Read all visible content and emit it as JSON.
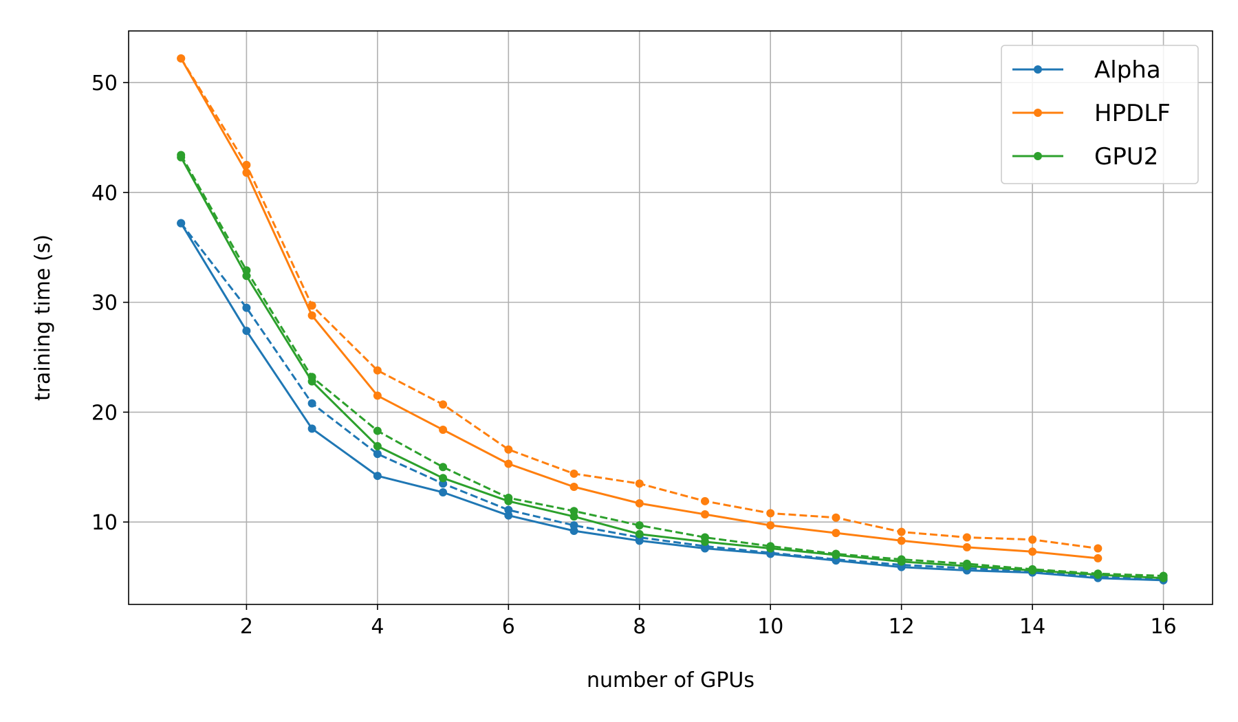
{
  "chart_data": {
    "type": "line",
    "title": "",
    "xlabel": "number of GPUs",
    "ylabel": "training time (s)",
    "xlim": [
      0.2,
      16.75
    ],
    "ylim": [
      2.5,
      54.7
    ],
    "xticks": [
      2,
      4,
      6,
      8,
      10,
      12,
      14,
      16
    ],
    "yticks": [
      10,
      20,
      30,
      40,
      50
    ],
    "grid": true,
    "legend_position": "top-right",
    "series": [
      {
        "name": "Alpha",
        "color": "#1f77b4",
        "linestyle": "solid",
        "in_legend": true,
        "x": [
          1,
          2,
          3,
          4,
          5,
          6,
          7,
          8,
          9,
          10,
          11,
          12,
          13,
          14,
          15,
          16
        ],
        "y": [
          37.2,
          27.4,
          18.5,
          14.2,
          12.7,
          10.6,
          9.2,
          8.3,
          7.6,
          7.1,
          6.5,
          5.9,
          5.6,
          5.4,
          4.9,
          4.7
        ]
      },
      {
        "name": "",
        "color": "#1f77b4",
        "linestyle": "dashed",
        "in_legend": false,
        "x": [
          1,
          2,
          3,
          4,
          5,
          6,
          7,
          8,
          9,
          10,
          11,
          12,
          13,
          14,
          15,
          16
        ],
        "y": [
          37.2,
          29.5,
          20.8,
          16.2,
          13.5,
          11.1,
          9.7,
          8.6,
          7.8,
          7.2,
          6.6,
          6.1,
          5.8,
          5.5,
          5.0,
          4.8
        ]
      },
      {
        "name": "HPDLF",
        "color": "#ff7f0e",
        "linestyle": "solid",
        "in_legend": true,
        "x": [
          1,
          2,
          3,
          4,
          5,
          6,
          7,
          8,
          9,
          10,
          11,
          12,
          13,
          14,
          15
        ],
        "y": [
          52.2,
          41.8,
          28.8,
          21.5,
          18.4,
          15.3,
          13.2,
          11.7,
          10.7,
          9.7,
          9.0,
          8.3,
          7.7,
          7.3,
          6.7
        ]
      },
      {
        "name": "",
        "color": "#ff7f0e",
        "linestyle": "dashed",
        "in_legend": false,
        "x": [
          1,
          2,
          3,
          4,
          5,
          6,
          7,
          8,
          9,
          10,
          11,
          12,
          13,
          14,
          15
        ],
        "y": [
          52.2,
          42.5,
          29.7,
          23.8,
          20.7,
          16.6,
          14.4,
          13.5,
          11.9,
          10.8,
          10.4,
          9.1,
          8.6,
          8.4,
          7.6
        ]
      },
      {
        "name": "GPU2",
        "color": "#2ca02c",
        "linestyle": "solid",
        "in_legend": true,
        "x": [
          1,
          2,
          3,
          4,
          5,
          6,
          7,
          8,
          9,
          10,
          11,
          12,
          13,
          14,
          15,
          16
        ],
        "y": [
          43.2,
          32.4,
          22.8,
          16.9,
          14.0,
          11.9,
          10.5,
          8.9,
          8.2,
          7.6,
          7.0,
          6.4,
          6.0,
          5.6,
          5.2,
          4.9
        ]
      },
      {
        "name": "",
        "color": "#2ca02c",
        "linestyle": "dashed",
        "in_legend": false,
        "x": [
          1,
          2,
          3,
          4,
          5,
          6,
          7,
          8,
          9,
          10,
          11,
          12,
          13,
          14,
          15,
          16
        ],
        "y": [
          43.4,
          32.9,
          23.2,
          18.3,
          15.0,
          12.2,
          11.0,
          9.7,
          8.6,
          7.8,
          7.1,
          6.6,
          6.2,
          5.7,
          5.3,
          5.1
        ]
      }
    ]
  }
}
